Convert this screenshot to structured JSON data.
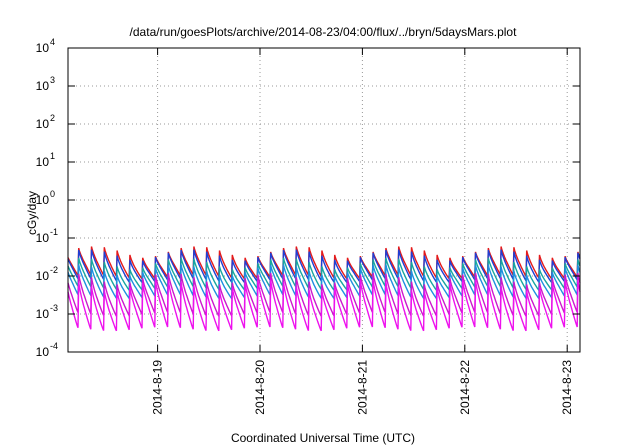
{
  "chart_data": {
    "type": "line",
    "title": "/data/run/goesPlots/archive/2014-08-23/04:00/flux/../bryn/5daysMars.plot",
    "xlabel": "Coordinated Universal Time (UTC)",
    "ylabel": "cGy/day",
    "y_scale": "log",
    "ylim": [
      0.0001,
      10000
    ],
    "y_ticks": [
      {
        "base": "10",
        "exp": "-4",
        "value": 0.0001
      },
      {
        "base": "10",
        "exp": "-3",
        "value": 0.001
      },
      {
        "base": "10",
        "exp": "-2",
        "value": 0.01
      },
      {
        "base": "10",
        "exp": "-1",
        "value": 0.1
      },
      {
        "base": "10",
        "exp": "0",
        "value": 1
      },
      {
        "base": "10",
        "exp": "1",
        "value": 10
      },
      {
        "base": "10",
        "exp": "2",
        "value": 100
      },
      {
        "base": "10",
        "exp": "3",
        "value": 1000
      },
      {
        "base": "10",
        "exp": "4",
        "value": 10000
      }
    ],
    "xlim": [
      "2014-08-18T03:00",
      "2014-08-23T03:00"
    ],
    "x_ticks": [
      {
        "label": "2014-8-19",
        "value": "2014-08-19T00:00"
      },
      {
        "label": "2014-8-20",
        "value": "2014-08-20T00:00"
      },
      {
        "label": "2014-8-21",
        "value": "2014-08-21T00:00"
      },
      {
        "label": "2014-8-22",
        "value": "2014-08-22T00:00"
      },
      {
        "label": "2014-8-23",
        "value": "2014-08-23T00:00"
      }
    ],
    "grid": true,
    "pattern": "sawtooth with a period of about 3 hours",
    "series": [
      {
        "color": "#e51a1a",
        "peak": 0.06,
        "trough": 0.01
      },
      {
        "color": "#1f3fd4",
        "peak": 0.05,
        "trough": 0.008
      },
      {
        "color": "#18a6a0",
        "peak": 0.03,
        "trough": 0.005
      },
      {
        "color": "#1f8fe0",
        "peak": 0.02,
        "trough": 0.003
      },
      {
        "color": "#cc19cc",
        "peak": 0.012,
        "trough": 0.001
      },
      {
        "color": "#ee11ee",
        "peak": 0.008,
        "trough": 0.0004
      }
    ]
  }
}
